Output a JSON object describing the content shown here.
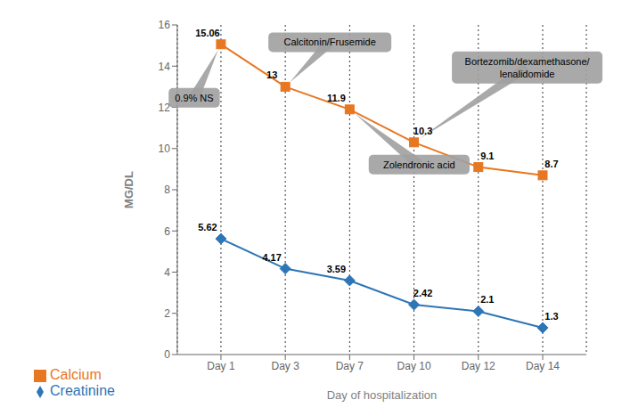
{
  "chart_data": {
    "type": "line",
    "categories": [
      "Day 1",
      "Day 3",
      "Day 7",
      "Day 10",
      "Day 12",
      "Day 14"
    ],
    "series": [
      {
        "name": "Calcium",
        "color": "#E87722",
        "marker": "square",
        "values": [
          15.06,
          13,
          11.9,
          10.3,
          9.1,
          8.7
        ]
      },
      {
        "name": "Creatinine",
        "color": "#2E75B6",
        "marker": "diamond",
        "values": [
          5.62,
          4.17,
          3.59,
          2.42,
          2.1,
          1.3
        ]
      }
    ],
    "xlabel": "Day of hospitalization",
    "ylabel": "MG/DL",
    "ylim": [
      0,
      16
    ],
    "yticks": [
      0,
      2,
      4,
      6,
      8,
      10,
      12,
      14,
      16
    ],
    "grid": "x",
    "legend": "lower left",
    "data_labels": true,
    "annotations": [
      {
        "text": "0.9% NS",
        "x": "Day 1",
        "y": 15.06,
        "color": "#A0A0A0"
      },
      {
        "text": "Calcitonin/Frusemide",
        "x": "Day 3",
        "y": 13,
        "color": "#A0A0A0"
      },
      {
        "text": "Zolendronic acid",
        "x": "Day 7",
        "y": 11.9,
        "color": "#A0A0A0"
      },
      {
        "text": "Bortezomib/dexamethasone/\nlenalidomide",
        "x": "Day 10",
        "y": 10.3,
        "color": "#A0A0A0"
      }
    ]
  }
}
